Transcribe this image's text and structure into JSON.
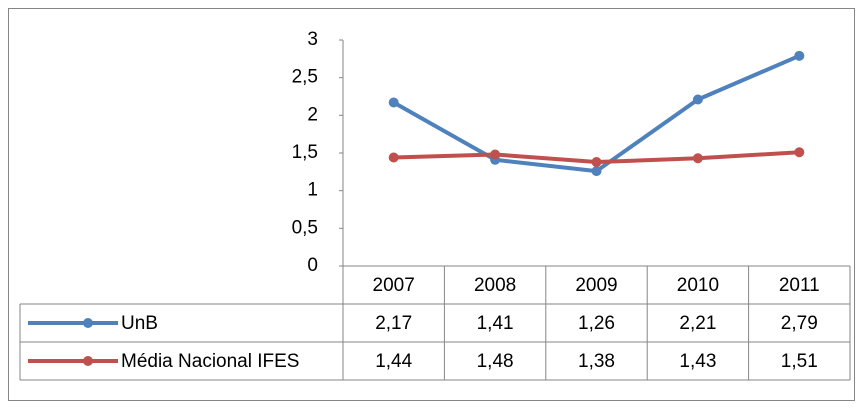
{
  "chart_data": {
    "type": "line",
    "categories": [
      "2007",
      "2008",
      "2009",
      "2010",
      "2011"
    ],
    "series": [
      {
        "name": "UnB",
        "color": "#4f81bd",
        "values": [
          2.17,
          1.41,
          1.26,
          2.21,
          2.79
        ],
        "value_labels": [
          "2,17",
          "1,41",
          "1,26",
          "2,21",
          "2,79"
        ]
      },
      {
        "name": "Média Nacional IFES",
        "color": "#c0504d",
        "values": [
          1.44,
          1.48,
          1.38,
          1.43,
          1.51
        ],
        "value_labels": [
          "1,44",
          "1,48",
          "1,38",
          "1,43",
          "1,51"
        ]
      }
    ],
    "ylim": [
      0,
      3
    ],
    "yticks": [
      0,
      {
        "value": 0.5,
        "label": "0,5"
      },
      1,
      {
        "value": 1.5,
        "label": "1,5"
      },
      2,
      {
        "value": 2.5,
        "label": "2,5"
      },
      3
    ]
  }
}
